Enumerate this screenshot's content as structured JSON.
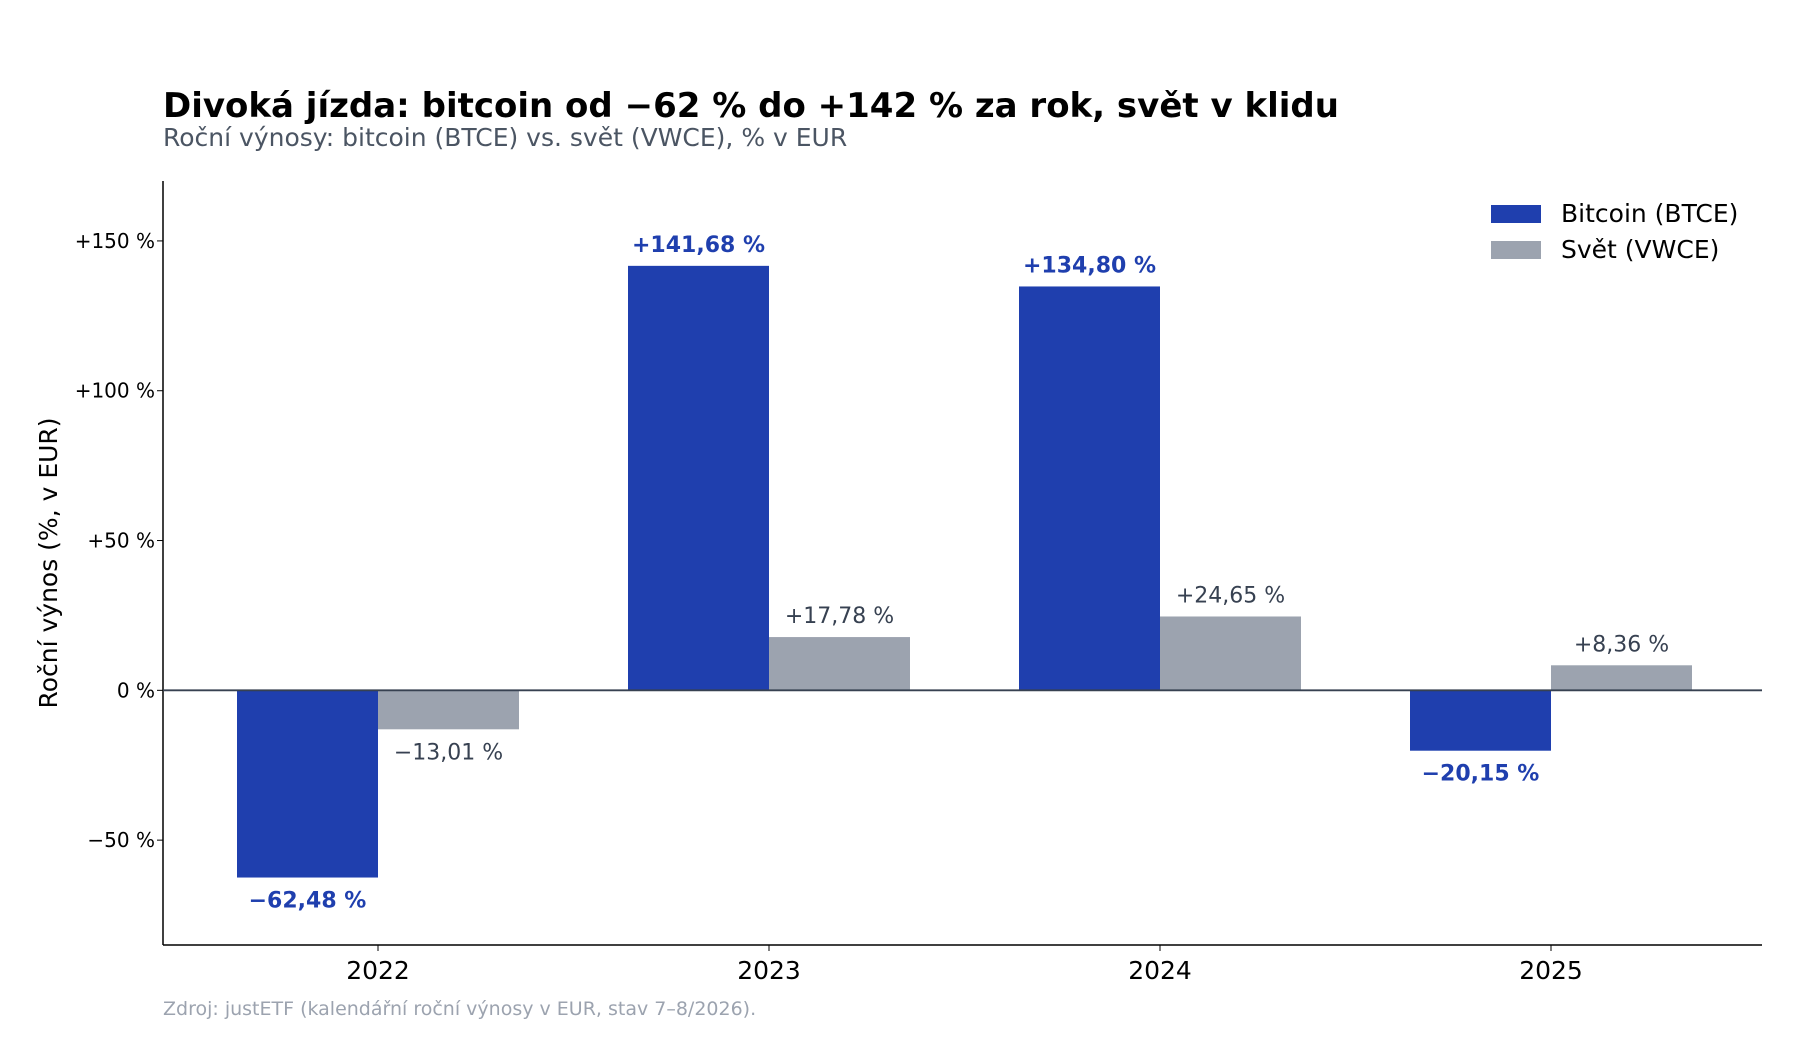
{
  "colors": {
    "btc": "#1f3fae",
    "vwce": "#9ca3af",
    "btc_label": "#1f3fae",
    "vwce_label": "#374151",
    "axis": "#000000",
    "zero_line": "#374151"
  },
  "chart_data": {
    "type": "bar",
    "title": "Divoká jízda: bitcoin od −62 % do +142 % za rok, svět v klidu",
    "subtitle": "Roční výnosy: bitcoin (BTCE) vs. svět (VWCE), % v EUR",
    "xlabel": "",
    "ylabel": "Roční výnos (%, v EUR)",
    "ylim": [
      -85,
      170
    ],
    "yticks": [
      -50,
      0,
      50,
      100,
      150
    ],
    "ytick_labels": [
      "−50 %",
      "0 %",
      "+50 %",
      "+100 %",
      "+150 %"
    ],
    "categories": [
      "2022",
      "2023",
      "2024",
      "2025"
    ],
    "series": [
      {
        "name": "Bitcoin (BTCE)",
        "values": [
          -62.48,
          141.68,
          134.8,
          -20.15
        ],
        "labels": [
          "−62,48 %",
          "+141,68 %",
          "+134,80 %",
          "−20,15 %"
        ]
      },
      {
        "name": "Svět (VWCE)",
        "values": [
          -13.01,
          17.78,
          24.65,
          8.36
        ],
        "labels": [
          "−13,01 %",
          "+17,78 %",
          "+24,65 %",
          "+8,36 %"
        ]
      }
    ],
    "legend_position": "top-right",
    "grid": false,
    "source": "Zdroj: justETF (kalendářní roční výnosy v EUR, stav 7–8/2026)."
  }
}
